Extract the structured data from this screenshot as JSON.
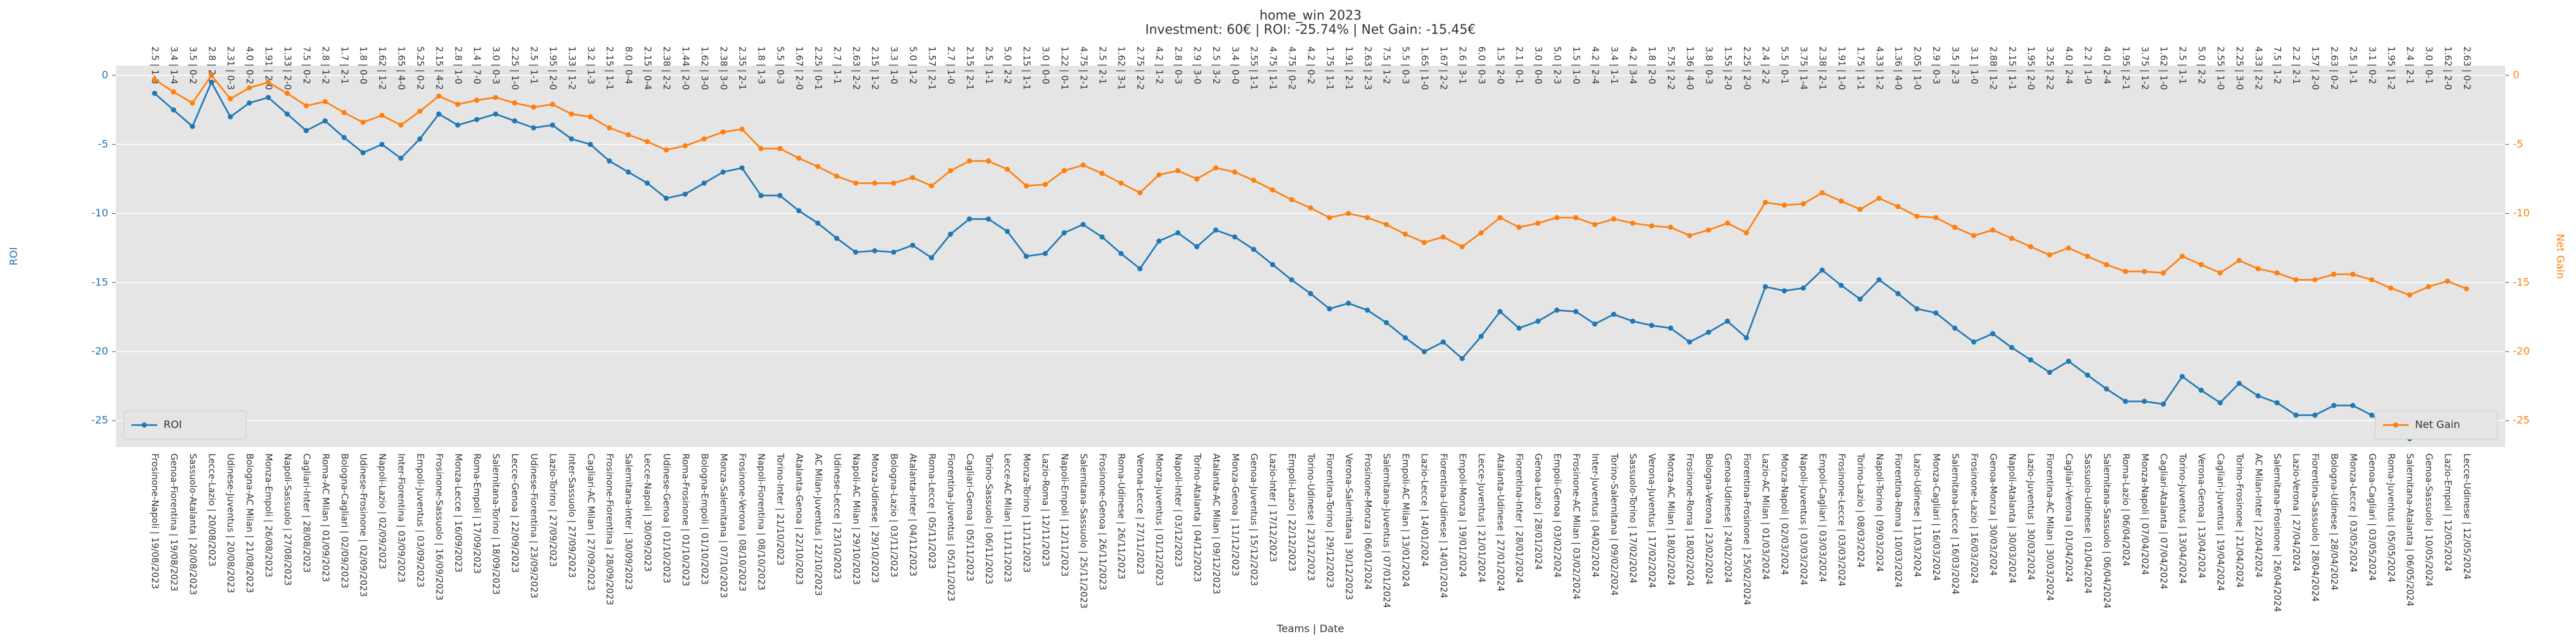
{
  "chart_data": {
    "type": "line",
    "title": "home_win 2023",
    "subtitle": "Investment: 60€ | ROI: -25.74% | Net Gain: -15.45€",
    "xlabel": "Teams | Date",
    "ylabel": "ROI",
    "y2label": "Net Gain",
    "categories": [
      "Frosinone-Napoli | 19/08/2023",
      "Genoa-Fiorentina | 19/08/2023",
      "Sassuolo-Atalanta | 20/08/2023",
      "Lecce-Lazio | 20/08/2023",
      "Udinese-Juventus | 20/08/2023",
      "Bologna-AC Milan | 21/08/2023",
      "Monza-Empoli | 26/08/2023",
      "Napoli-Sassuolo | 27/08/2023",
      "Cagliari-Inter | 28/08/2023",
      "Roma-AC Milan | 01/09/2023",
      "Bologna-Cagliari | 02/09/2023",
      "Udinese-Frosinone | 02/09/2023",
      "Napoli-Lazio | 02/09/2023",
      "Inter-Fiorentina | 03/09/2023",
      "Empoli-Juventus | 03/09/2023",
      "Frosinone-Sassuolo | 16/09/2023",
      "Monza-Lecce | 16/09/2023",
      "Roma-Empoli | 17/09/2023",
      "Salernitana-Torino | 18/09/2023",
      "Lecce-Genoa | 22/09/2023",
      "Udinese-Fiorentina | 23/09/2023",
      "Lazio-Torino | 27/09/2023",
      "Inter-Sassuolo | 27/09/2023",
      "Cagliari-AC Milan | 27/09/2023",
      "Frosinone-Fiorentina | 28/09/2023",
      "Salernitana-Inter | 30/09/2023",
      "Lecce-Napoli | 30/09/2023",
      "Udinese-Genoa | 01/10/2023",
      "Roma-Frosinone | 01/10/2023",
      "Bologna-Empoli | 01/10/2023",
      "Monza-Salernitana | 07/10/2023",
      "Frosinone-Verona | 08/10/2023",
      "Napoli-Fiorentina | 08/10/2023",
      "Torino-Inter | 21/10/2023",
      "Atalanta-Genoa | 22/10/2023",
      "AC Milan-Juventus | 22/10/2023",
      "Udinese-Lecce | 23/10/2023",
      "Napoli-AC Milan | 29/10/2023",
      "Monza-Udinese | 29/10/2023",
      "Bologna-Lazio | 03/11/2023",
      "Atalanta-Inter | 04/11/2023",
      "Roma-Lecce | 05/11/2023",
      "Fiorentina-Juventus | 05/11/2023",
      "Cagliari-Genoa | 05/11/2023",
      "Torino-Sassuolo | 06/11/2023",
      "Lecce-AC Milan | 11/11/2023",
      "Monza-Torino | 11/11/2023",
      "Lazio-Roma | 12/11/2023",
      "Napoli-Empoli | 12/11/2023",
      "Salernitana-Sassuolo | 25/11/2023",
      "Frosinone-Genoa | 26/11/2023",
      "Roma-Udinese | 26/11/2023",
      "Verona-Lecce | 27/11/2023",
      "Monza-Juventus | 01/12/2023",
      "Napoli-Inter | 03/12/2023",
      "Torino-Atalanta | 04/12/2023",
      "Atalanta-AC Milan | 09/12/2023",
      "Monza-Genoa | 11/12/2023",
      "Genoa-Juventus | 15/12/2023",
      "Lazio-Inter | 17/12/2023",
      "Empoli-Lazio | 22/12/2023",
      "Torino-Udinese | 23/12/2023",
      "Fiorentina-Torino | 29/12/2023",
      "Verona-Salernitana | 30/12/2023",
      "Frosinone-Monza | 06/01/2024",
      "Salernitana-Juventus | 07/01/2024",
      "Empoli-AC Milan | 13/01/2024",
      "Lazio-Lecce | 14/01/2024",
      "Fiorentina-Udinese | 14/01/2024",
      "Empoli-Monza | 19/01/2024",
      "Lecce-Juventus | 21/01/2024",
      "Atalanta-Udinese | 27/01/2024",
      "Fiorentina-Inter | 28/01/2024",
      "Genoa-Lazio | 28/01/2024",
      "Empoli-Genoa | 03/02/2024",
      "Frosinone-AC Milan | 03/02/2024",
      "Inter-Juventus | 04/02/2024",
      "Torino-Salernitana | 09/02/2024",
      "Sassuolo-Torino | 17/02/2024",
      "Verona-Juventus | 17/02/2024",
      "Monza-AC Milan | 18/02/2024",
      "Frosinone-Roma | 18/02/2024",
      "Bologna-Verona | 23/02/2024",
      "Genoa-Udinese | 24/02/2024",
      "Fiorentina-Frosinone | 25/02/2024",
      "Lazio-AC Milan | 01/03/2024",
      "Monza-Napoli | 02/03/2024",
      "Napoli-Juventus | 03/03/2024",
      "Empoli-Cagliari | 03/03/2024",
      "Frosinone-Lecce | 03/03/2024",
      "Torino-Lazio | 08/03/2024",
      "Napoli-Torino | 09/03/2024",
      "Fiorentina-Roma | 10/03/2024",
      "Lazio-Udinese | 11/03/2024",
      "Monza-Cagliari | 16/03/2024",
      "Salernitana-Lecce | 16/03/2024",
      "Frosinone-Lazio | 16/03/2024",
      "Genoa-Monza | 30/03/2024",
      "Napoli-Atalanta | 30/03/2024",
      "Lazio-Juventus | 30/03/2024",
      "Fiorentina-AC Milan | 30/03/2024",
      "Cagliari-Verona | 01/04/2024",
      "Sassuolo-Udinese | 01/04/2024",
      "Salernitana-Sassuolo | 06/04/2024",
      "Roma-Lazio | 06/04/2024",
      "Monza-Napoli | 07/04/2024",
      "Cagliari-Atalanta | 07/04/2024",
      "Torino-Juventus | 13/04/2024",
      "Verona-Genoa | 13/04/2024",
      "Cagliari-Juventus | 19/04/2024",
      "Torino-Frosinone | 21/04/2024",
      "AC Milan-Inter | 22/04/2024",
      "Salernitana-Frosinone | 26/04/2024",
      "Lazio-Verona | 27/04/2024",
      "Fiorentina-Sassuolo | 28/04/2024",
      "Bologna-Udinese | 28/04/2024",
      "Monza-Lecce | 03/05/2024",
      "Genoa-Cagliari | 03/05/2024",
      "Roma-Juventus | 05/05/2024",
      "Salernitana-Atalanta | 06/05/2024",
      "Genoa-Sassuolo | 10/05/2024",
      "Lazio-Empoli | 12/05/2024",
      "Lecce-Udinese | 12/05/2024"
    ],
    "top_labels": [
      "2.5 | 1-3",
      "3.4 | 1-4",
      "3.5 | 0-2",
      "2.8 | 2-1",
      "2.31 | 0-3",
      "4.0 | 0-2",
      "1.91 | 2-0",
      "1.33 | 2-0",
      "7.5 | 0-2",
      "2.8 | 1-2",
      "1.7 | 2-1",
      "1.8 | 0-0",
      "1.62 | 1-2",
      "1.65 | 4-0",
      "5.25 | 0-2",
      "2.15 | 4-2",
      "2.8 | 1-0",
      "1.4 | 7-0",
      "3.0 | 0-3",
      "2.25 | 1-0",
      "2.5 | 1-1",
      "1.95 | 2-0",
      "1.33 | 1-2",
      "3.2 | 1-3",
      "2.15 | 1-1",
      "8.0 | 0-4",
      "2.15 | 0-4",
      "2.38 | 2-2",
      "1.44 | 2-0",
      "1.62 | 3-0",
      "2.38 | 3-0",
      "2.35 | 2-1",
      "1.8 | 1-3",
      "5.5 | 0-3",
      "1.67 | 2-0",
      "2.25 | 0-1",
      "2.7 | 1-1",
      "2.63 | 2-2",
      "2.15 | 1-2",
      "3.3 | 1-0",
      "5.0 | 1-2",
      "1.57 | 2-1",
      "2.7 | 1-0",
      "2.15 | 2-1",
      "2.5 | 1-1",
      "5.0 | 2-2",
      "2.15 | 1-1",
      "3.0 | 0-0",
      "1.22 | 0-1",
      "4.75 | 2-1",
      "2.5 | 2-1",
      "1.62 | 3-1",
      "2.75 | 2-2",
      "4.2 | 1-2",
      "2.8 | 0-3",
      "2.9 | 3-0",
      "2.5 | 3-2",
      "3.4 | 0-0",
      "2.55 | 1-1",
      "4.75 | 1-1",
      "4.75 | 0-2",
      "4.2 | 0-2",
      "1.75 | 1-1",
      "1.91 | 2-1",
      "2.63 | 2-3",
      "7.5 | 1-2",
      "5.5 | 0-3",
      "1.65 | 1-0",
      "1.67 | 2-2",
      "2.6 | 3-1",
      "6.0 | 0-3",
      "1.5 | 2-0",
      "2.1 | 0-1",
      "3.0 | 0-0",
      "5.0 | 2-3",
      "1.5 | 1-0",
      "4.2 | 2-4",
      "3.4 | 1-1",
      "4.2 | 3-4",
      "1.8 | 2-0",
      "5.75 | 2-2",
      "1.36 | 4-0",
      "3.8 | 0-3",
      "1.55 | 2-0",
      "2.25 | 2-0",
      "2.4 | 2-2",
      "5.5 | 0-1",
      "3.75 | 1-4",
      "2.38 | 2-1",
      "1.91 | 1-0",
      "1.75 | 1-1",
      "4.33 | 1-2",
      "1.36 | 4-0",
      "2.05 | 1-0",
      "2.9 | 0-3",
      "3.5 | 2-3",
      "3.1 | 1-0",
      "2.88 | 1-2",
      "2.15 | 1-1",
      "1.95 | 2-0",
      "3.25 | 2-2",
      "4.0 | 2-4",
      "2.2 | 1-0",
      "4.0 | 2-4",
      "1.95 | 2-1",
      "3.75 | 1-2",
      "1.62 | 1-0",
      "2.5 | 1-1",
      "5.0 | 2-2",
      "2.55 | 1-0",
      "2.25 | 3-0",
      "4.33 | 2-2",
      "7.5 | 1-2",
      "2.2 | 2-1",
      "1.57 | 2-0",
      "2.63 | 0-2",
      "2.5 | 1-1",
      "3.1 | 0-2",
      "1.95 | 1-2",
      "2.4 | 2-1",
      "3.0 | 0-1",
      "1.62 | 2-0",
      "2.63 | 0-2"
    ],
    "series": [
      {
        "name": "ROI",
        "color": "#1f77b4",
        "axis": "y",
        "values": [
          -1.3,
          -2.5,
          -3.7,
          -0.5,
          -3.0,
          -2.0,
          -1.6,
          -2.8,
          -4.0,
          -3.3,
          -4.5,
          -5.6,
          -5.0,
          -6.0,
          -4.6,
          -2.8,
          -3.6,
          -3.2,
          -2.8,
          -3.3,
          -3.8,
          -3.6,
          -4.6,
          -5.0,
          -6.2,
          -7.0,
          -7.8,
          -8.9,
          -8.6,
          -7.8,
          -7.0,
          -6.7,
          -8.7,
          -8.7,
          -9.8,
          -10.7,
          -11.8,
          -12.8,
          -12.7,
          -12.8,
          -12.3,
          -13.2,
          -11.5,
          -10.4,
          -10.4,
          -11.3,
          -13.1,
          -12.9,
          -11.4,
          -10.8,
          -11.7,
          -12.9,
          -14.0,
          -12.0,
          -11.4,
          -12.4,
          -11.2,
          -11.7,
          -12.6,
          -13.7,
          -14.8,
          -15.8,
          -16.9,
          -16.5,
          -17.0,
          -17.9,
          -19.0,
          -20.0,
          -19.3,
          -20.5,
          -18.9,
          -17.1,
          -18.3,
          -17.8,
          -17.0,
          -17.1,
          -18.0,
          -17.3,
          -17.8,
          -18.1,
          -18.3,
          -19.3,
          -18.6,
          -17.8,
          -19.0,
          -15.3,
          -15.6,
          -15.4,
          -14.1,
          -15.2,
          -16.2,
          -14.8,
          -15.8,
          -16.9,
          -17.2,
          -18.3,
          -19.3,
          -18.7,
          -19.7,
          -20.6,
          -21.5,
          -20.7,
          -21.7,
          -22.7,
          -23.6,
          -23.6,
          -23.8,
          -21.8,
          -22.8,
          -23.7,
          -22.3,
          -23.2,
          -23.7,
          -24.6,
          -24.6,
          -23.9,
          -23.9,
          -24.6,
          -25.5,
          -26.3,
          -25.3,
          -24.8,
          -25.74
        ]
      },
      {
        "name": "Net Gain",
        "color": "#ff7f0e",
        "axis": "y2",
        "values": [
          -0.3,
          -1.2,
          -2.0,
          0,
          -1.7,
          -0.9,
          -0.5,
          -1.3,
          -2.2,
          -1.9,
          -2.7,
          -3.4,
          -2.9,
          -3.6,
          -2.6,
          -1.5,
          -2.1,
          -1.8,
          -1.6,
          -2.0,
          -2.3,
          -2.1,
          -2.8,
          -3.0,
          -3.8,
          -4.3,
          -4.8,
          -5.4,
          -5.1,
          -4.6,
          -4.1,
          -3.9,
          -5.3,
          -5.3,
          -6.0,
          -6.6,
          -7.3,
          -7.8,
          -7.8,
          -7.8,
          -7.4,
          -8.0,
          -6.9,
          -6.2,
          -6.2,
          -6.8,
          -8.0,
          -7.9,
          -6.9,
          -6.5,
          -7.1,
          -7.8,
          -8.5,
          -7.2,
          -6.9,
          -7.5,
          -6.7,
          -7.0,
          -7.6,
          -8.3,
          -9.0,
          -9.6,
          -10.3,
          -10.0,
          -10.3,
          -10.8,
          -11.5,
          -12.1,
          -11.7,
          -12.4,
          -11.4,
          -10.3,
          -11.0,
          -10.7,
          -10.3,
          -10.3,
          -10.8,
          -10.4,
          -10.7,
          -10.9,
          -11.0,
          -11.6,
          -11.2,
          -10.7,
          -11.4,
          -9.2,
          -9.4,
          -9.3,
          -8.5,
          -9.1,
          -9.7,
          -8.9,
          -9.5,
          -10.2,
          -10.3,
          -11.0,
          -11.6,
          -11.2,
          -11.8,
          -12.4,
          -13.0,
          -12.5,
          -13.1,
          -13.7,
          -14.2,
          -14.2,
          -14.3,
          -13.1,
          -13.7,
          -14.3,
          -13.4,
          -14.0,
          -14.3,
          -14.8,
          -14.8,
          -14.4,
          -14.4,
          -14.8,
          -15.4,
          -15.9,
          -15.3,
          -14.9,
          -15.45
        ]
      }
    ],
    "ylim": [
      -26.9,
      0.7
    ],
    "yticks": [
      0,
      -5,
      -10,
      -15,
      -20,
      -25
    ],
    "y2lim": [
      -26.9,
      0.7
    ],
    "y2ticks": [
      0,
      -5,
      -10,
      -15,
      -20,
      -25
    ],
    "grid": true,
    "legend": [
      "lower left",
      "lower right"
    ]
  }
}
